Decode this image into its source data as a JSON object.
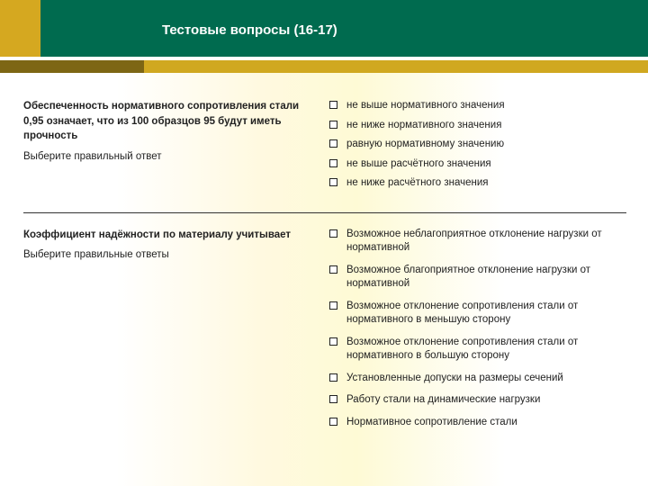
{
  "title": "Тестовые вопросы (16-17)",
  "colors": {
    "header_bg": "#006b4f",
    "header_accent": "#d5a820",
    "strip": "#d0a820",
    "strip_dark": "#7d6614",
    "text": "#222222"
  },
  "q1": {
    "stem": "Обеспеченность нормативного сопротивления стали 0,95 означает, что из 100 образцов 95 будут иметь прочность",
    "instruction": "Выберите правильный ответ",
    "options": [
      "не выше нормативного значения",
      "не ниже нормативного значения",
      "равную нормативному значению",
      "не выше расчётного значения",
      "не ниже расчётного значения"
    ]
  },
  "q2": {
    "stem": "Коэффициент надёжности по материалу учитывает",
    "instruction": "Выберите правильные ответы",
    "options": [
      "Возможное неблагоприятное отклонение нагрузки от нормативной",
      "Возможное благоприятное отклонение нагрузки от нормативной",
      "Возможное отклонение сопротивления стали от нормативного в меньшую сторону",
      "Возможное отклонение сопротивления стали от нормативного в большую сторону",
      "Установленные допуски на размеры сечений",
      "Работу стали на динамические нагрузки",
      "Нормативное сопротивление стали"
    ]
  }
}
